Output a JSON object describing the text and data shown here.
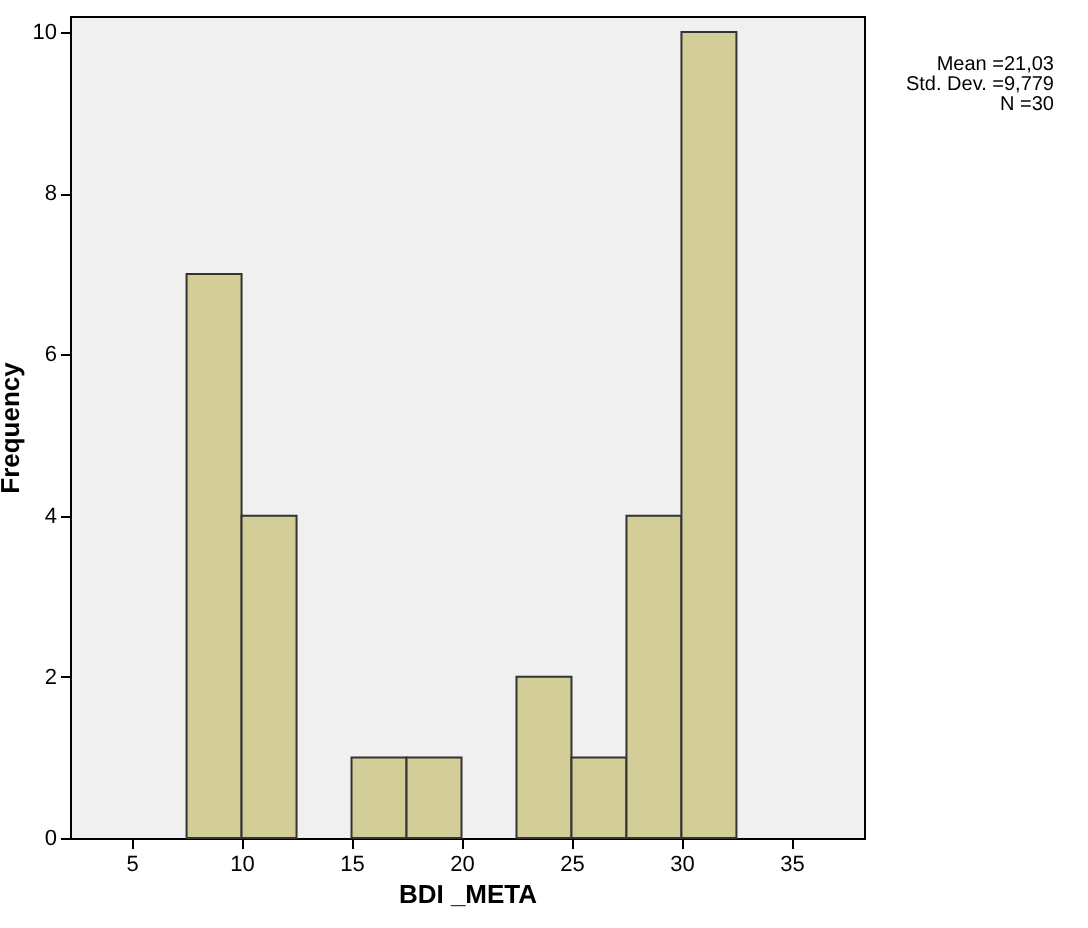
{
  "chart_data": {
    "type": "histogram",
    "xlabel": "BDI _META",
    "ylabel": "Frequency",
    "bins": [
      7.5,
      10,
      12.5,
      15,
      17.5,
      20,
      22.5,
      25,
      27.5,
      30,
      32.5
    ],
    "values": [
      7,
      4,
      0,
      1,
      1,
      0,
      2,
      1,
      4,
      10
    ],
    "color": "#d3ce97",
    "xlim": [
      2.2,
      38.3
    ],
    "xticks": [
      5,
      10,
      15,
      20,
      25,
      30,
      35
    ],
    "ylim": [
      0,
      10.2
    ],
    "yticks": [
      0,
      2,
      4,
      6,
      8,
      10
    ],
    "grid": false,
    "annotations": [
      "Mean =21,03",
      "Std. Dev. =9,779",
      "N =30"
    ]
  }
}
